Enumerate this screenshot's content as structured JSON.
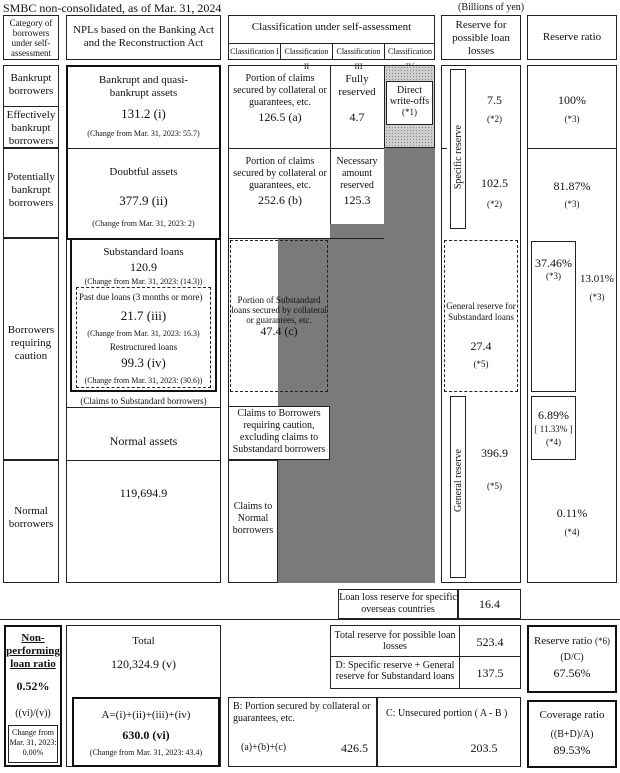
{
  "header": {
    "title": "SMBC non-consolidated, as of Mar. 31, 2024",
    "unit": "(Billions of yen)"
  },
  "columns": {
    "category": "Category of borrowers under self-assessment",
    "npl": "NPLs based on the Banking Act and the Reconstruction Act",
    "self_assessment": "Classification under self-assessment",
    "class_1": "Classification I",
    "class_2": "Classification II",
    "class_3": "Classification III",
    "class_4": "Classification IV",
    "reserve": "Reserve for possible loan losses",
    "ratio": "Reserve ratio"
  },
  "categories": {
    "bankrupt": "Bankrupt borrowers",
    "effectively_bankrupt": "Effectively bankrupt borrowers",
    "potentially_bankrupt": "Potentially bankrupt borrowers",
    "caution": "Borrowers requiring caution",
    "normal": "Normal borrowers"
  },
  "npl": {
    "bq_label": "Bankrupt and quasi-bankrupt assets",
    "bq_value": "131.2 (i)",
    "bq_change": "(Change from Mar. 31, 2023: 55.7)",
    "doubtful_label": "Doubtful assets",
    "doubtful_value": "377.9 (ii)",
    "doubtful_change": "(Change from Mar. 31, 2023: 2)",
    "substandard_label": "Substandard loans",
    "substandard_value": "120.9",
    "substandard_change": "(Change from Mar. 31, 2023: (14.3))",
    "past_due_label": "Past due loans (3 months or more)",
    "past_due_value": "21.7 (iii)",
    "past_due_change": "(Change from Mar. 31, 2023: 16.3)",
    "restructured_label": "Restructured loans",
    "restructured_value": "99.3 (iv)",
    "restructured_change": "(Change from Mar. 31, 2023: (30.6))",
    "claims_substandard": "(Claims to Substandard borrowers)",
    "normal_assets": "Normal assets",
    "normal_value": "119,694.9"
  },
  "classification": {
    "secured_label_1": "Portion of claims secured by collateral or guarantees, etc.",
    "secured_value_1": "126.5 (a)",
    "fully_reserved": "Fully reserved",
    "fully_value": "4.7",
    "direct_writeoffs": "Direct write-offs",
    "direct_note": "(*1)",
    "secured_label_2": "Portion of claims secured by collateral or guarantees, etc.",
    "secured_value_2": "252.6 (b)",
    "necessary_reserved": "Necessary amount reserved",
    "necessary_value": "125.3",
    "substandard_secured": "Portion of Substandard loans secured by collateral or guarantees, etc.",
    "substandard_secured_value": "47.4 (c)",
    "claims_caution": "Claims to Borrowers requiring caution, excluding claims to Substandard borrowers",
    "claims_normal": "Claims to Normal borrowers"
  },
  "reserves": {
    "specific_label": "Specific reserve",
    "specific_1": "7.5",
    "specific_1_note": "(*2)",
    "specific_2": "102.5",
    "specific_2_note": "(*2)",
    "general_sub_label": "General reserve for Substandard loans",
    "general_sub_value": "27.4",
    "general_sub_note": "(*5)",
    "general_label": "General reserve",
    "general_value": "396.9",
    "general_note": "(*5)"
  },
  "ratios": {
    "r1": "100%",
    "r1_note": "(*3)",
    "r2": "81.87%",
    "r2_note": "(*3)",
    "r3": "37.46%",
    "r3_note": "(*3)",
    "r4": "13.01%",
    "r4_note": "(*3)",
    "r5": "6.89%",
    "r5_bracket": "[ 11.33% ]",
    "r5_note": "(*4)",
    "r6": "0.11%",
    "r6_note": "(*4)"
  },
  "overseas": {
    "label": "Loan loss reserve for specific overseas countries",
    "value": "16.4"
  },
  "summary": {
    "npl_ratio_label": "Non-performing loan ratio",
    "npl_ratio_value": "0.52%",
    "npl_ratio_formula": "((vi)/(v))",
    "npl_ratio_change": "Change from Mar. 31, 2023: 0.00%",
    "total_label": "Total",
    "total_value": "120,324.9 (v)",
    "a_formula": "A=(i)+(ii)+(iii)+(iv)",
    "a_value": "630.0 (vi)",
    "a_change": "(Change from Mar. 31, 2023: 43.4)",
    "b_label": "B: Portion secured by collateral or guarantees, etc.",
    "b_formula": "(a)+(b)+(c)",
    "b_value": "426.5",
    "c_label": "C: Unsecured portion ( A - B )",
    "c_value": "203.5",
    "total_reserve_label": "Total reserve for possible loan losses",
    "total_reserve_value": "523.4",
    "d_label": "D: Specific reserve + General reserve for Substandard loans",
    "d_value": "137.5",
    "reserve_ratio_label": "Reserve ratio",
    "reserve_ratio_note": "(*6)",
    "reserve_ratio_formula": "(D/C)",
    "reserve_ratio_value": "67.56%",
    "coverage_label": "Coverage ratio",
    "coverage_formula": "((B+D)/A)",
    "coverage_value": "89.53%"
  }
}
